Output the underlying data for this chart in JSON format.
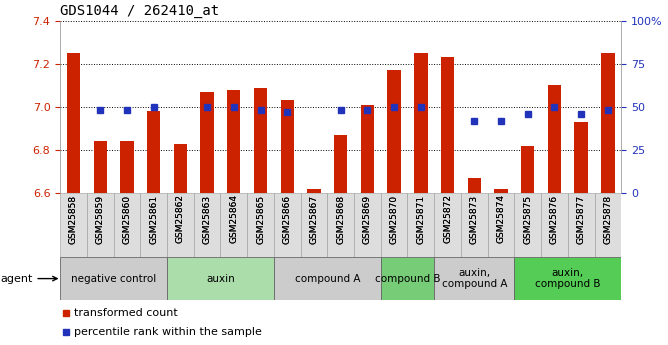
{
  "title": "GDS1044 / 262410_at",
  "samples": [
    "GSM25858",
    "GSM25859",
    "GSM25860",
    "GSM25861",
    "GSM25862",
    "GSM25863",
    "GSM25864",
    "GSM25865",
    "GSM25866",
    "GSM25867",
    "GSM25868",
    "GSM25869",
    "GSM25870",
    "GSM25871",
    "GSM25872",
    "GSM25873",
    "GSM25874",
    "GSM25875",
    "GSM25876",
    "GSM25877",
    "GSM25878"
  ],
  "bar_values": [
    7.25,
    6.84,
    6.84,
    6.98,
    6.83,
    7.07,
    7.08,
    7.09,
    7.03,
    6.62,
    6.87,
    7.01,
    7.17,
    7.25,
    7.23,
    6.67,
    6.62,
    6.82,
    7.1,
    6.93,
    7.25
  ],
  "percentile_values": [
    null,
    48,
    48,
    50,
    null,
    50,
    50,
    48,
    47,
    null,
    48,
    48,
    50,
    50,
    null,
    42,
    42,
    46,
    50,
    46,
    48
  ],
  "ylim": [
    6.6,
    7.4
  ],
  "yticks": [
    6.6,
    6.8,
    7.0,
    7.2,
    7.4
  ],
  "right_yticks": [
    0,
    25,
    50,
    75,
    100
  ],
  "bar_color": "#cc2200",
  "dot_color": "#2233bb",
  "bar_width": 0.5,
  "groups": [
    {
      "label": "negative control",
      "start": 0,
      "end": 4,
      "color": "#cccccc"
    },
    {
      "label": "auxin",
      "start": 4,
      "end": 8,
      "color": "#aaddaa"
    },
    {
      "label": "compound A",
      "start": 8,
      "end": 12,
      "color": "#cccccc"
    },
    {
      "label": "compound B",
      "start": 12,
      "end": 14,
      "color": "#77cc77"
    },
    {
      "label": "auxin,\ncompound A",
      "start": 14,
      "end": 17,
      "color": "#cccccc"
    },
    {
      "label": "auxin,\ncompound B",
      "start": 17,
      "end": 21,
      "color": "#55cc55"
    }
  ],
  "background_color": "#ffffff",
  "legend_items": [
    {
      "label": "transformed count",
      "color": "#cc2200"
    },
    {
      "label": "percentile rank within the sample",
      "color": "#2233bb"
    }
  ]
}
